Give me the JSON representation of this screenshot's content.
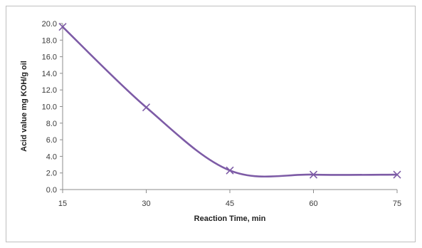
{
  "chart_data": {
    "type": "line",
    "title": "",
    "xlabel": "Reaction Time, min",
    "ylabel": "Acid value mg KOH/g oil",
    "x": [
      15,
      30,
      45,
      60,
      75
    ],
    "x_tick_labels": [
      "15",
      "30",
      "45",
      "60",
      "75"
    ],
    "y_tick_labels": [
      "0.0",
      "2.0",
      "4.0",
      "6.0",
      "8.0",
      "10.0",
      "12.0",
      "14.0",
      "16.0",
      "18.0",
      "20.0"
    ],
    "series": [
      {
        "values": [
          19.6,
          9.9,
          2.3,
          1.8,
          1.8
        ],
        "color": "#7d5ba6",
        "marker": "x",
        "smooth": true
      }
    ],
    "xlim": [
      15,
      75
    ],
    "ylim": [
      0,
      20
    ],
    "grid": false,
    "legend": "none",
    "colors": {
      "axis": "#8c8c8c",
      "frame": "#bfbfbf",
      "series": "#7d5ba6"
    }
  }
}
